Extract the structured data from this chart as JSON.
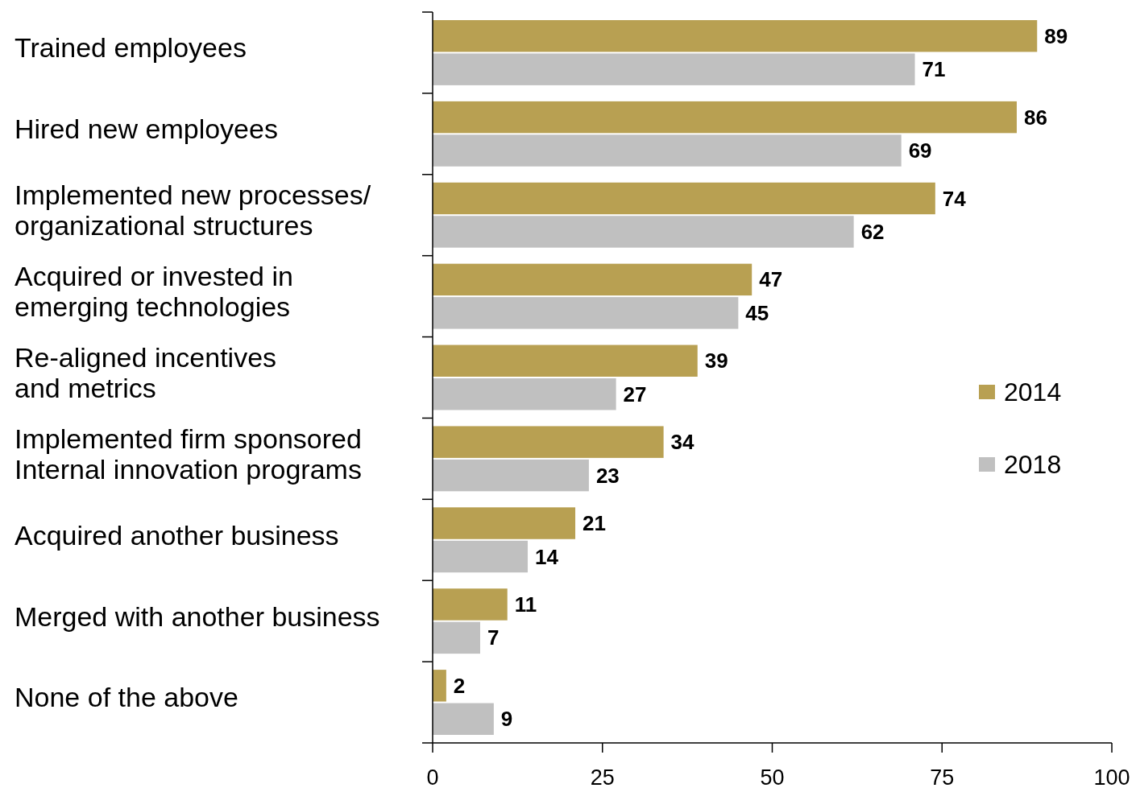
{
  "chart_data": {
    "type": "bar",
    "orientation": "horizontal",
    "categories": [
      "Trained employees",
      "Hired new employees",
      "Implemented new processes/\norganizational structures",
      "Acquired or invested in\nemerging technologies",
      "Re-aligned incentives\nand metrics",
      "Implemented firm sponsored\nInternal innovation programs",
      "Acquired another business",
      "Merged with another business",
      "None of the above"
    ],
    "series": [
      {
        "name": "2014",
        "color": "#b8a052",
        "values": [
          89,
          86,
          74,
          47,
          39,
          34,
          21,
          11,
          2
        ]
      },
      {
        "name": "2018",
        "color": "#c0c0c0",
        "values": [
          71,
          69,
          62,
          45,
          27,
          23,
          14,
          7,
          9
        ]
      }
    ],
    "xlim": [
      0,
      100
    ],
    "xticks": [
      0,
      25,
      50,
      75,
      100
    ],
    "data_labels": true,
    "legend": "right",
    "grid": false
  }
}
